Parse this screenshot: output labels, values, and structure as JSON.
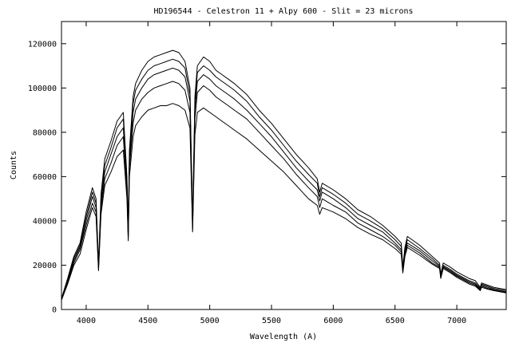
{
  "chart_data": {
    "type": "line",
    "title": "HD196544 - Celestron 11 + Alpy 600 - Slit = 23 microns",
    "xlabel": "Wavelength (A)",
    "ylabel": "Counts",
    "xlim": [
      3800,
      7400
    ],
    "ylim": [
      0,
      130000
    ],
    "xticks": [
      4000,
      4500,
      5000,
      5500,
      6000,
      6500,
      7000
    ],
    "yticks": [
      0,
      20000,
      40000,
      60000,
      80000,
      100000,
      120000
    ],
    "grid": false,
    "legend": "none",
    "line_color": "#000000",
    "x": [
      3800,
      3850,
      3900,
      3950,
      4000,
      4050,
      4080,
      4100,
      4120,
      4150,
      4200,
      4250,
      4300,
      4330,
      4340,
      4350,
      4380,
      4400,
      4450,
      4500,
      4550,
      4600,
      4650,
      4700,
      4750,
      4800,
      4840,
      4861,
      4880,
      4900,
      4950,
      5000,
      5050,
      5100,
      5150,
      5200,
      5300,
      5400,
      5500,
      5600,
      5700,
      5800,
      5870,
      5890,
      5910,
      6000,
      6100,
      6200,
      6300,
      6400,
      6500,
      6550,
      6563,
      6580,
      6600,
      6700,
      6800,
      6860,
      6870,
      6890,
      6950,
      7000,
      7100,
      7150,
      7190,
      7200,
      7250,
      7300,
      7400
    ],
    "series": [
      {
        "values": [
          5000,
          14000,
          24000,
          30000,
          44000,
          55000,
          50000,
          20000,
          52000,
          68000,
          76000,
          85000,
          89000,
          60000,
          36000,
          72000,
          96000,
          102000,
          108000,
          112000,
          114000,
          115000,
          116000,
          117000,
          116000,
          112000,
          100000,
          39000,
          96000,
          110000,
          114000,
          112000,
          108000,
          106000,
          104000,
          102000,
          97000,
          90000,
          84000,
          77000,
          70000,
          64000,
          59000,
          53000,
          57000,
          54000,
          50000,
          45000,
          42000,
          38000,
          33000,
          30000,
          19000,
          28000,
          33000,
          29000,
          24000,
          21000,
          16000,
          21000,
          19000,
          17000,
          14000,
          13000,
          10000,
          12000,
          11000,
          10000,
          9000
        ]
      },
      {
        "values": [
          4800,
          13500,
          23000,
          29000,
          42000,
          53000,
          48000,
          19000,
          50000,
          65000,
          73000,
          82000,
          86000,
          58000,
          35000,
          70000,
          93000,
          99000,
          104000,
          108000,
          110000,
          111000,
          112000,
          113000,
          112000,
          109000,
          97000,
          38000,
          93000,
          107000,
          110000,
          108000,
          105000,
          103000,
          101000,
          99000,
          94000,
          87000,
          81000,
          74000,
          67000,
          61000,
          57000,
          51000,
          55000,
          52000,
          48000,
          43000,
          40000,
          36500,
          31500,
          28500,
          18500,
          27000,
          31500,
          27500,
          23000,
          20000,
          15500,
          20000,
          18000,
          16000,
          13000,
          12000,
          9500,
          11500,
          10500,
          9500,
          8500
        ]
      },
      {
        "values": [
          4600,
          13000,
          22000,
          28000,
          40000,
          51000,
          46000,
          19000,
          48000,
          62000,
          70000,
          78000,
          82000,
          56000,
          33000,
          67000,
          89000,
          95000,
          100000,
          104000,
          106000,
          107000,
          108000,
          109000,
          108000,
          105000,
          94000,
          37000,
          90000,
          103000,
          106000,
          104000,
          101000,
          99000,
          97000,
          95000,
          90000,
          84000,
          78000,
          71000,
          64000,
          58000,
          54000,
          49000,
          53000,
          50000,
          46000,
          41000,
          38000,
          35000,
          30000,
          27000,
          18000,
          26000,
          30000,
          26500,
          22000,
          19500,
          15000,
          19500,
          17500,
          15500,
          12500,
          11500,
          9000,
          11000,
          10000,
          9000,
          8000
        ]
      },
      {
        "values": [
          4400,
          12000,
          21000,
          27000,
          38000,
          48000,
          44000,
          18000,
          45000,
          59000,
          66000,
          74000,
          78000,
          53000,
          32000,
          64000,
          84000,
          90000,
          95000,
          98000,
          100000,
          101000,
          102000,
          103000,
          102000,
          99000,
          89000,
          36000,
          86000,
          98000,
          101000,
          99000,
          96000,
          94000,
          92000,
          90000,
          86000,
          80000,
          74000,
          68000,
          61000,
          55000,
          51000,
          46000,
          50000,
          47000,
          44000,
          39000,
          36000,
          33000,
          29000,
          26000,
          17000,
          25000,
          29000,
          25500,
          21000,
          19000,
          14500,
          19000,
          17000,
          15000,
          12000,
          11000,
          8800,
          10500,
          9500,
          8800,
          7800
        ]
      },
      {
        "values": [
          4200,
          11500,
          20000,
          25000,
          36000,
          46000,
          42000,
          17500,
          43000,
          56000,
          62000,
          69000,
          72000,
          50000,
          31000,
          60000,
          78000,
          83000,
          87000,
          90000,
          91000,
          92000,
          92000,
          93000,
          92000,
          90000,
          82000,
          35000,
          79000,
          89000,
          91000,
          89000,
          87000,
          85000,
          83000,
          81000,
          77000,
          72000,
          67000,
          62000,
          56000,
          50000,
          47000,
          43000,
          46000,
          44000,
          41000,
          37000,
          34000,
          31500,
          27500,
          25000,
          16500,
          24000,
          28000,
          24500,
          20500,
          18500,
          14000,
          18500,
          16500,
          14500,
          11500,
          10500,
          8500,
          10000,
          9200,
          8500,
          7500
        ]
      }
    ]
  }
}
